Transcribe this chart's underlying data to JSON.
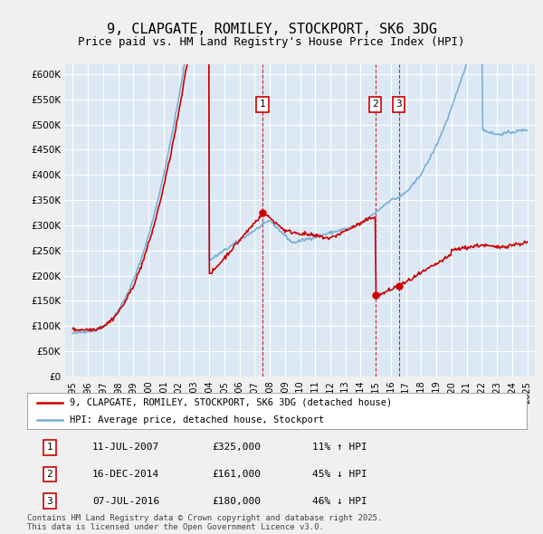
{
  "title": "9, CLAPGATE, ROMILEY, STOCKPORT, SK6 3DG",
  "subtitle": "Price paid vs. HM Land Registry's House Price Index (HPI)",
  "title_fontsize": 11,
  "subtitle_fontsize": 9,
  "background_color": "#f0f0f0",
  "plot_bg_color": "#dce9f5",
  "red_line_color": "#cc0000",
  "blue_line_color": "#7aafd4",
  "sale_marker_color": "#cc0000",
  "vline_color": "#cc0000",
  "ylim": [
    0,
    620000
  ],
  "sales": [
    {
      "date_num": 2007.53,
      "price": 325000,
      "label": "1"
    },
    {
      "date_num": 2014.96,
      "price": 161000,
      "label": "2"
    },
    {
      "date_num": 2016.52,
      "price": 180000,
      "label": "3"
    }
  ],
  "legend_entries": [
    "9, CLAPGATE, ROMILEY, STOCKPORT, SK6 3DG (detached house)",
    "HPI: Average price, detached house, Stockport"
  ],
  "table_rows": [
    [
      "1",
      "11-JUL-2007",
      "£325,000",
      "11% ↑ HPI"
    ],
    [
      "2",
      "16-DEC-2014",
      "£161,000",
      "45% ↓ HPI"
    ],
    [
      "3",
      "07-JUL-2016",
      "£180,000",
      "46% ↓ HPI"
    ]
  ],
  "footer": "Contains HM Land Registry data © Crown copyright and database right 2025.\nThis data is licensed under the Open Government Licence v3.0.",
  "xmin": 1994.5,
  "xmax": 2025.5
}
